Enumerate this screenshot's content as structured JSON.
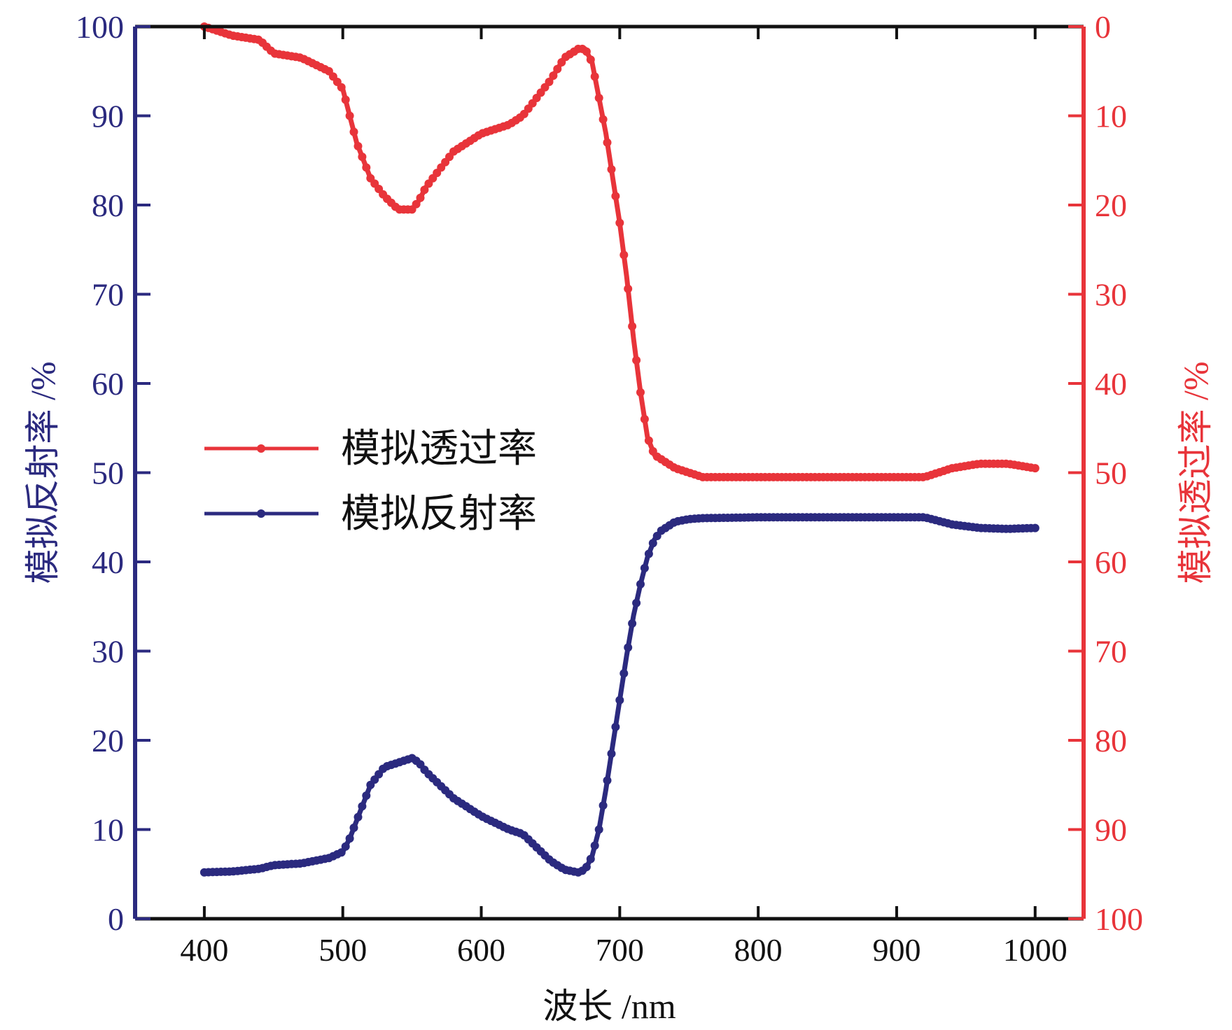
{
  "colors": {
    "reflectance": "#2b2a7f",
    "transmittance": "#e8343a",
    "frame": "#111111"
  },
  "chart_data": {
    "type": "line",
    "xlabel": "波长 /nm",
    "ylabel_left": "模拟反射率 /%",
    "ylabel_right": "模拟透过率 /%",
    "xlim": [
      350,
      1035
    ],
    "ylim_left": [
      0,
      100
    ],
    "ylim_right": [
      100,
      0
    ],
    "right_axis_inverted": true,
    "x_ticks": [
      400,
      500,
      600,
      700,
      800,
      900,
      1000
    ],
    "y_ticks_left": [
      0,
      10,
      20,
      30,
      40,
      50,
      60,
      70,
      80,
      90,
      100
    ],
    "y_ticks_right": [
      0,
      10,
      20,
      30,
      40,
      50,
      60,
      70,
      80,
      90,
      100
    ],
    "grid": false,
    "legend_position": "center-left",
    "series": [
      {
        "name": "模拟透过率",
        "axis": "right",
        "color": "#e8343a",
        "x": [
          400,
          410,
          420,
          440,
          450,
          470,
          490,
          500,
          505,
          510,
          520,
          530,
          540,
          550,
          555,
          560,
          580,
          590,
          600,
          620,
          630,
          640,
          650,
          660,
          670,
          675,
          680,
          685,
          690,
          695,
          700,
          705,
          710,
          715,
          720,
          725,
          730,
          740,
          750,
          760,
          800,
          850,
          900,
          920,
          930,
          940,
          960,
          980,
          1000
        ],
        "y": [
          0,
          0.5,
          1,
          1.5,
          3,
          3.5,
          5,
          7,
          10,
          13,
          17,
          19,
          20.5,
          20.5,
          19.5,
          18,
          14,
          13,
          12,
          11,
          10,
          8,
          6,
          3.5,
          2.5,
          2.5,
          4,
          8,
          12,
          17,
          22,
          28,
          35,
          41,
          46,
          48,
          48.5,
          49.5,
          50,
          50.5,
          50.5,
          50.5,
          50.5,
          50.5,
          50,
          49.5,
          49,
          49,
          49.5
        ]
      },
      {
        "name": "模拟反射率",
        "axis": "left",
        "color": "#2b2a7f",
        "x": [
          400,
          420,
          440,
          450,
          470,
          490,
          500,
          505,
          510,
          520,
          530,
          540,
          550,
          555,
          560,
          580,
          590,
          600,
          620,
          630,
          640,
          650,
          660,
          670,
          675,
          680,
          685,
          690,
          695,
          700,
          705,
          710,
          715,
          720,
          725,
          730,
          740,
          750,
          760,
          800,
          850,
          900,
          920,
          930,
          940,
          960,
          980,
          1000
        ],
        "y": [
          5.2,
          5.3,
          5.6,
          6,
          6.2,
          6.8,
          7.5,
          9,
          11,
          15,
          17,
          17.5,
          18,
          17.5,
          16.5,
          13.5,
          12.5,
          11.5,
          10,
          9.5,
          8,
          6.5,
          5.5,
          5.2,
          5.5,
          7,
          10,
          14.5,
          19.5,
          24.5,
          29.5,
          34,
          37.5,
          40.5,
          42.5,
          43.5,
          44.5,
          44.8,
          44.9,
          45,
          45,
          45,
          45,
          44.6,
          44.2,
          43.8,
          43.7,
          43.8
        ]
      }
    ]
  }
}
